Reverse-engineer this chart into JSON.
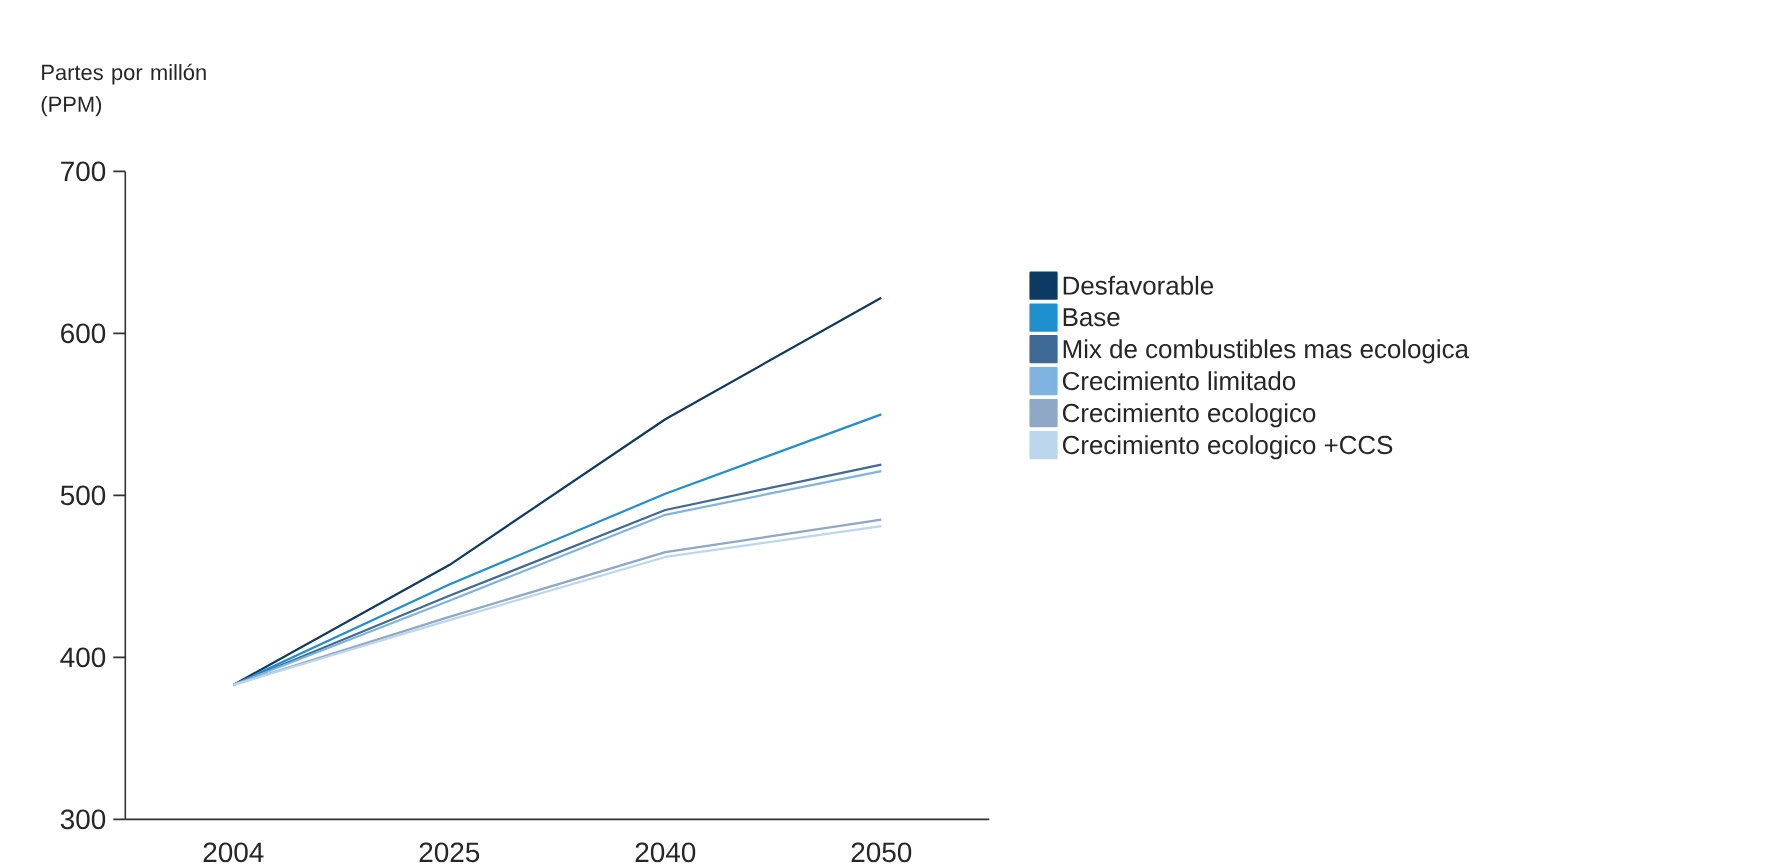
{
  "chart_data": {
    "type": "line",
    "ylabel": "Partes por millón (PPM)",
    "categories": [
      "2004",
      "2025",
      "2040",
      "2050"
    ],
    "series": [
      {
        "name": "Desfavorable",
        "color": "#0d3a63",
        "values": [
          383,
          457,
          547,
          622
        ]
      },
      {
        "name": "Base",
        "color": "#1e90d0",
        "values": [
          383,
          445,
          501,
          550
        ]
      },
      {
        "name": "Mix de combustibles mas ecologica",
        "color": "#3f6a95",
        "values": [
          383,
          438,
          491,
          519
        ]
      },
      {
        "name": "Crecimiento limitado",
        "color": "#7fb3e0",
        "values": [
          383,
          435,
          488,
          515
        ]
      },
      {
        "name": "Crecimiento ecologico",
        "color": "#8fa8c6",
        "values": [
          383,
          425,
          465,
          485
        ]
      },
      {
        "name": "Crecimiento ecologico +CCS",
        "color": "#bcd6ee",
        "values": [
          383,
          423,
          462,
          481
        ]
      }
    ],
    "ylim": [
      300,
      700
    ],
    "yticks": [
      300,
      400,
      500,
      600,
      700
    ],
    "grid": false,
    "legend": "right",
    "marker": "none",
    "line_style": "solid"
  }
}
